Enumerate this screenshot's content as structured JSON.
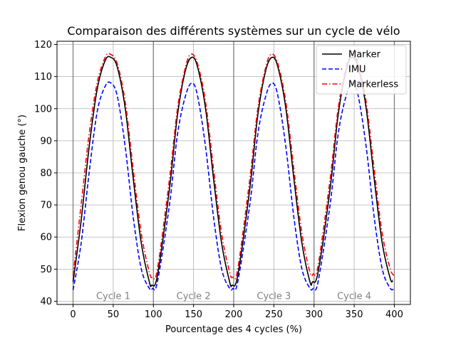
{
  "chart_data": {
    "type": "line",
    "title": "Comparaison des différents systèmes sur un cycle de vélo",
    "xlabel": "Pourcentage des 4 cycles (%)",
    "ylabel": "Flexion genou gauche (°)",
    "xlim": [
      -20,
      420
    ],
    "ylim": [
      39,
      121
    ],
    "xticks": [
      0,
      50,
      100,
      150,
      200,
      250,
      300,
      350,
      400
    ],
    "yticks": [
      40,
      50,
      60,
      70,
      80,
      90,
      100,
      110,
      120
    ],
    "grid": true,
    "legend_position": "top-right",
    "cycle_boundaries": [
      0,
      100,
      200,
      300,
      400
    ],
    "cycle_labels": [
      {
        "text": "Cycle 1",
        "x": 50
      },
      {
        "text": "Cycle 2",
        "x": 150
      },
      {
        "text": "Cycle 3",
        "x": 250
      },
      {
        "text": "Cycle 4",
        "x": 350
      }
    ],
    "series": [
      {
        "name": "Marker",
        "color": "#000000",
        "style": "solid",
        "x": [
          0,
          10,
          20,
          30,
          40,
          47,
          55,
          65,
          75,
          85,
          95,
          98,
          105,
          120,
          130,
          140,
          148,
          155,
          165,
          175,
          185,
          195,
          198,
          205,
          220,
          230,
          240,
          248,
          255,
          265,
          275,
          285,
          295,
          298,
          305,
          320,
          330,
          340,
          347,
          355,
          365,
          375,
          385,
          395,
          398
        ],
        "y": [
          46,
          65,
          88,
          106,
          115,
          116,
          113,
          100,
          78,
          58,
          46,
          45,
          48,
          75,
          98,
          112,
          116,
          113,
          100,
          78,
          58,
          46,
          45,
          48,
          75,
          98,
          112,
          116,
          113,
          100,
          78,
          58,
          46,
          46,
          49,
          75,
          98,
          112,
          116,
          113,
          100,
          78,
          58,
          47,
          46.5
        ]
      },
      {
        "name": "IMU",
        "color": "#0000ff",
        "style": "dashed",
        "x": [
          0,
          10,
          20,
          30,
          40,
          47,
          55,
          65,
          75,
          85,
          95,
          99,
          105,
          120,
          130,
          140,
          148,
          155,
          165,
          175,
          185,
          195,
          199,
          205,
          220,
          230,
          240,
          248,
          255,
          265,
          275,
          285,
          295,
          299,
          305,
          320,
          330,
          340,
          348,
          355,
          365,
          375,
          385,
          395,
          400
        ],
        "y": [
          43.5,
          58,
          80,
          99,
          107,
          108,
          104,
          88,
          66,
          50,
          44,
          44,
          46,
          70,
          92,
          104,
          108,
          104,
          88,
          66,
          50,
          44,
          44,
          46,
          70,
          92,
          104,
          108,
          104,
          88,
          66,
          50,
          44,
          44,
          46,
          70,
          92,
          104,
          108,
          104,
          88,
          66,
          50,
          44,
          44
        ]
      },
      {
        "name": "Markerless",
        "color": "#ff0000",
        "style": "dashdot",
        "x": [
          0,
          10,
          20,
          30,
          40,
          46,
          55,
          65,
          75,
          85,
          95,
          99,
          105,
          120,
          130,
          140,
          147,
          155,
          165,
          175,
          185,
          195,
          199,
          205,
          220,
          230,
          240,
          247,
          255,
          265,
          275,
          285,
          295,
          299,
          305,
          320,
          330,
          340,
          347,
          355,
          365,
          375,
          385,
          395,
          400
        ],
        "y": [
          48,
          70,
          92,
          108,
          116,
          117,
          114,
          102,
          81,
          61,
          49,
          47.5,
          50,
          78,
          100,
          113,
          117,
          114,
          102,
          81,
          61,
          49,
          47.5,
          50,
          78,
          100,
          113,
          117,
          114,
          102,
          81,
          61,
          49,
          48.5,
          51,
          78,
          100,
          113,
          117,
          114,
          102,
          81,
          61,
          50,
          48
        ]
      }
    ]
  }
}
